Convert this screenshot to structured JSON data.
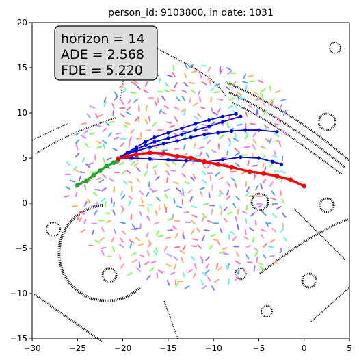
{
  "chart_data": {
    "type": "line",
    "title": "person_id: 9103800, in date: 1031",
    "xlim": [
      -30,
      5
    ],
    "ylim": [
      -15,
      20
    ],
    "xticks": [
      -30,
      -25,
      -20,
      -15,
      -10,
      -5,
      0,
      5
    ],
    "yticks": [
      -15,
      -10,
      -5,
      0,
      5,
      10,
      15,
      20
    ],
    "grid": false,
    "annotation": {
      "position": "top-left",
      "lines": [
        "horizon = 14",
        "ADE = 2.568",
        "FDE = 5.220"
      ]
    },
    "series": [
      {
        "role": "history",
        "color": "#2ca02c",
        "points": [
          [
            -25.0,
            2.0
          ],
          [
            -24.0,
            2.5
          ],
          [
            -23.2,
            3.1
          ],
          [
            -22.5,
            3.6
          ],
          [
            -21.8,
            4.1
          ],
          [
            -21.0,
            4.5
          ],
          [
            -20.5,
            4.8
          ]
        ]
      },
      {
        "role": "ground truth",
        "color": "#ff0000",
        "points": [
          [
            -20.5,
            4.9
          ],
          [
            -19.5,
            5.2
          ],
          [
            -18.5,
            5.4
          ],
          [
            -17.0,
            5.6
          ],
          [
            -15.5,
            5.5
          ],
          [
            -14.0,
            5.2
          ],
          [
            -12.5,
            5.0
          ],
          [
            -11.0,
            4.6
          ],
          [
            -9.5,
            4.3
          ],
          [
            -8.0,
            4.0
          ],
          [
            -6.0,
            3.5
          ],
          [
            -4.5,
            3.3
          ],
          [
            -3.0,
            3.0
          ],
          [
            -1.5,
            2.6
          ],
          [
            0.0,
            1.9
          ]
        ]
      },
      {
        "role": "prediction",
        "color": "#0000dd",
        "points": [
          [
            -20.5,
            5.0
          ],
          [
            -19.5,
            5.6
          ],
          [
            -18.5,
            6.2
          ],
          [
            -17.5,
            6.8
          ],
          [
            -16.5,
            7.3
          ],
          [
            -15.0,
            7.8
          ],
          [
            -13.5,
            8.3
          ],
          [
            -12.0,
            8.8
          ],
          [
            -10.5,
            9.2
          ],
          [
            -9.0,
            9.6
          ],
          [
            -7.5,
            9.9
          ]
        ]
      },
      {
        "role": "prediction",
        "color": "#0000dd",
        "points": [
          [
            -20.5,
            5.0
          ],
          [
            -19.5,
            5.5
          ],
          [
            -18.5,
            6.0
          ],
          [
            -17.5,
            6.4
          ],
          [
            -16.5,
            6.8
          ],
          [
            -15.0,
            7.2
          ],
          [
            -13.5,
            7.6
          ],
          [
            -12.0,
            8.1
          ],
          [
            -10.5,
            8.5
          ],
          [
            -9.0,
            9.0
          ],
          [
            -7.0,
            9.6
          ]
        ]
      },
      {
        "role": "prediction",
        "color": "#0000dd",
        "points": [
          [
            -20.5,
            5.0
          ],
          [
            -19.5,
            5.4
          ],
          [
            -18.5,
            5.8
          ],
          [
            -17.0,
            6.2
          ],
          [
            -15.5,
            6.6
          ],
          [
            -14.0,
            6.9
          ],
          [
            -12.5,
            7.3
          ],
          [
            -11.0,
            7.6
          ],
          [
            -9.5,
            7.8
          ],
          [
            -8.0,
            8.0
          ],
          [
            -6.5,
            8.1
          ],
          [
            -5.0,
            8.1
          ],
          [
            -3.0,
            7.9
          ]
        ]
      },
      {
        "role": "prediction",
        "color": "#0000dd",
        "points": [
          [
            -20.5,
            5.0
          ],
          [
            -19.0,
            5.0
          ],
          [
            -17.0,
            4.9
          ],
          [
            -15.0,
            4.8
          ],
          [
            -13.0,
            4.7
          ],
          [
            -11.0,
            4.6
          ],
          [
            -9.0,
            4.8
          ],
          [
            -7.0,
            5.1
          ],
          [
            -5.0,
            5.0
          ],
          [
            -3.5,
            4.6
          ],
          [
            -2.5,
            4.3
          ]
        ]
      }
    ]
  }
}
